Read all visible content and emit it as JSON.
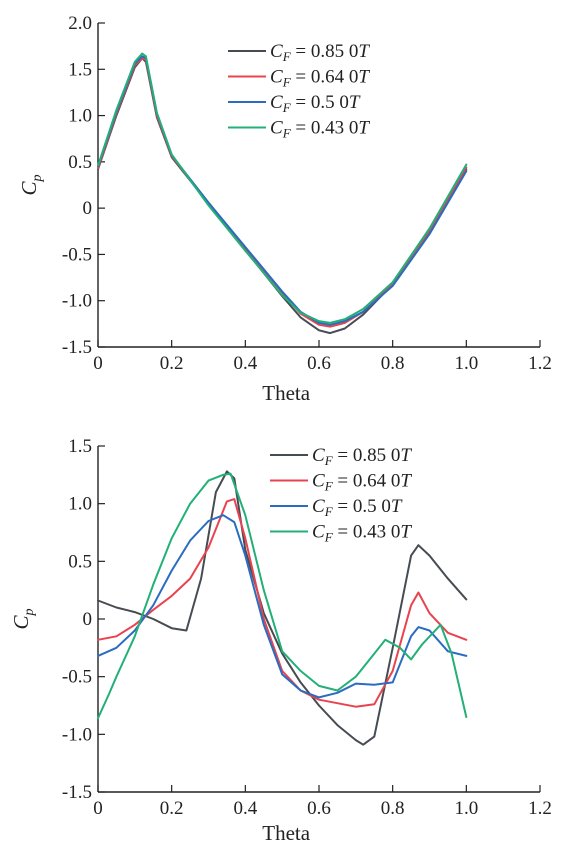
{
  "chart_data": [
    {
      "type": "line",
      "xlabel": "Theta",
      "ylabel_main": "C",
      "ylabel_sub": "p",
      "xlim": [
        0,
        1.2
      ],
      "ylim": [
        -1.5,
        2.0
      ],
      "xticks": [
        "0",
        "0.2",
        "0.4",
        "0.6",
        "0.8",
        "1.0",
        "1.2"
      ],
      "yticks": [
        "2.0",
        "1.5",
        "1.0",
        "0.5",
        "0",
        "-0.5",
        "-1.0",
        "-1.5"
      ],
      "legend_position": "top-right",
      "series": [
        {
          "name": "C_F = 0.85 0T",
          "name_main": "C",
          "name_sub": "F",
          "name_value": " = 0.85 0",
          "name_unit": "T",
          "color": "#474b53",
          "x": [
            0,
            0.05,
            0.1,
            0.12,
            0.13,
            0.16,
            0.2,
            0.3,
            0.4,
            0.5,
            0.55,
            0.6,
            0.63,
            0.67,
            0.72,
            0.8,
            0.9,
            1.0
          ],
          "y": [
            0.42,
            1.0,
            1.52,
            1.62,
            1.58,
            0.98,
            0.55,
            0.05,
            -0.45,
            -0.95,
            -1.18,
            -1.32,
            -1.35,
            -1.3,
            -1.15,
            -0.82,
            -0.25,
            0.42
          ]
        },
        {
          "name": "C_F = 0.64 0T",
          "name_main": "C",
          "name_sub": "F",
          "name_value": " = 0.64 0",
          "name_unit": "T",
          "color": "#e8434f",
          "x": [
            0,
            0.05,
            0.1,
            0.12,
            0.13,
            0.16,
            0.2,
            0.3,
            0.4,
            0.5,
            0.55,
            0.6,
            0.63,
            0.67,
            0.72,
            0.8,
            0.9,
            1.0
          ],
          "y": [
            0.43,
            1.02,
            1.54,
            1.62,
            1.6,
            1.0,
            0.56,
            0.06,
            -0.43,
            -0.92,
            -1.14,
            -1.26,
            -1.28,
            -1.24,
            -1.12,
            -0.82,
            -0.24,
            0.44
          ]
        },
        {
          "name": "C_F = 0.5 0T",
          "name_main": "C",
          "name_sub": "F",
          "name_value": " = 0.5 0",
          "name_unit": "T",
          "color": "#2a6cc0",
          "x": [
            0,
            0.05,
            0.1,
            0.12,
            0.13,
            0.16,
            0.2,
            0.3,
            0.4,
            0.5,
            0.55,
            0.6,
            0.63,
            0.67,
            0.72,
            0.8,
            0.9,
            1.0
          ],
          "y": [
            0.45,
            1.04,
            1.56,
            1.64,
            1.62,
            1.02,
            0.57,
            0.06,
            -0.42,
            -0.9,
            -1.12,
            -1.24,
            -1.26,
            -1.22,
            -1.12,
            -0.84,
            -0.28,
            0.4
          ]
        },
        {
          "name": "C_F = 0.43 0T",
          "name_main": "C",
          "name_sub": "F",
          "name_value": " = 0.43 0",
          "name_unit": "T",
          "color": "#22b077",
          "x": [
            0,
            0.05,
            0.1,
            0.12,
            0.13,
            0.16,
            0.2,
            0.3,
            0.4,
            0.5,
            0.55,
            0.6,
            0.63,
            0.67,
            0.72,
            0.8,
            0.9,
            1.0
          ],
          "y": [
            0.46,
            1.06,
            1.58,
            1.67,
            1.64,
            1.03,
            0.58,
            0.03,
            -0.46,
            -0.94,
            -1.13,
            -1.22,
            -1.24,
            -1.2,
            -1.09,
            -0.8,
            -0.22,
            0.47
          ]
        }
      ]
    },
    {
      "type": "line",
      "xlabel": "Theta",
      "ylabel_main": "C",
      "ylabel_sub": "p",
      "xlim": [
        0,
        1.2
      ],
      "ylim": [
        -1.5,
        1.5
      ],
      "xticks": [
        "0",
        "0.2",
        "0.4",
        "0.6",
        "0.8",
        "1.0",
        "1.2"
      ],
      "yticks": [
        "1.5",
        "1.0",
        "0.5",
        "0",
        "-0.5",
        "-1.0",
        "-1.5"
      ],
      "legend_position": "top-right",
      "series": [
        {
          "name": "C_F = 0.85 0T",
          "name_main": "C",
          "name_sub": "F",
          "name_value": " = 0.85 0",
          "name_unit": "T",
          "color": "#474b53",
          "x": [
            0,
            0.05,
            0.1,
            0.15,
            0.2,
            0.24,
            0.28,
            0.32,
            0.35,
            0.37,
            0.4,
            0.45,
            0.5,
            0.55,
            0.6,
            0.65,
            0.7,
            0.72,
            0.75,
            0.8,
            0.85,
            0.87,
            0.9,
            0.95,
            1.0
          ],
          "y": [
            0.16,
            0.1,
            0.06,
            0.0,
            -0.08,
            -0.1,
            0.35,
            1.1,
            1.28,
            1.22,
            0.6,
            0.05,
            -0.3,
            -0.55,
            -0.75,
            -0.92,
            -1.05,
            -1.09,
            -1.02,
            -0.25,
            0.55,
            0.64,
            0.55,
            0.35,
            0.17
          ]
        },
        {
          "name": "C_F = 0.64 0T",
          "name_main": "C",
          "name_sub": "F",
          "name_value": " = 0.64 0",
          "name_unit": "T",
          "color": "#e8434f",
          "x": [
            0,
            0.05,
            0.1,
            0.15,
            0.2,
            0.25,
            0.3,
            0.35,
            0.37,
            0.4,
            0.45,
            0.5,
            0.55,
            0.6,
            0.65,
            0.7,
            0.75,
            0.8,
            0.85,
            0.87,
            0.9,
            0.95,
            1.0
          ],
          "y": [
            -0.18,
            -0.15,
            -0.05,
            0.08,
            0.2,
            0.35,
            0.62,
            1.02,
            1.04,
            0.7,
            0.0,
            -0.45,
            -0.62,
            -0.7,
            -0.73,
            -0.76,
            -0.74,
            -0.45,
            0.12,
            0.23,
            0.05,
            -0.12,
            -0.18
          ]
        },
        {
          "name": "C_F = 0.5 0T",
          "name_main": "C",
          "name_sub": "F",
          "name_value": " = 0.5 0",
          "name_unit": "T",
          "color": "#2a6cc0",
          "x": [
            0,
            0.05,
            0.1,
            0.15,
            0.2,
            0.25,
            0.3,
            0.34,
            0.37,
            0.4,
            0.45,
            0.5,
            0.55,
            0.6,
            0.65,
            0.7,
            0.75,
            0.8,
            0.85,
            0.87,
            0.9,
            0.95,
            1.0
          ],
          "y": [
            -0.32,
            -0.25,
            -0.1,
            0.12,
            0.42,
            0.68,
            0.85,
            0.9,
            0.84,
            0.55,
            -0.05,
            -0.48,
            -0.62,
            -0.68,
            -0.64,
            -0.56,
            -0.57,
            -0.55,
            -0.15,
            -0.07,
            -0.1,
            -0.28,
            -0.32
          ]
        },
        {
          "name": "C_F = 0.43 0T",
          "name_main": "C",
          "name_sub": "F",
          "name_value": " = 0.43 0",
          "name_unit": "T",
          "color": "#22b077",
          "x": [
            0,
            0.03,
            0.05,
            0.1,
            0.15,
            0.2,
            0.25,
            0.3,
            0.34,
            0.36,
            0.4,
            0.45,
            0.5,
            0.55,
            0.6,
            0.65,
            0.7,
            0.75,
            0.78,
            0.82,
            0.85,
            0.88,
            0.93,
            0.96,
            1.0
          ],
          "y": [
            -0.86,
            -0.65,
            -0.5,
            -0.15,
            0.3,
            0.7,
            1.0,
            1.2,
            1.25,
            1.26,
            0.9,
            0.25,
            -0.28,
            -0.45,
            -0.58,
            -0.62,
            -0.5,
            -0.3,
            -0.18,
            -0.25,
            -0.35,
            -0.22,
            -0.05,
            -0.3,
            -0.85
          ]
        }
      ]
    }
  ]
}
